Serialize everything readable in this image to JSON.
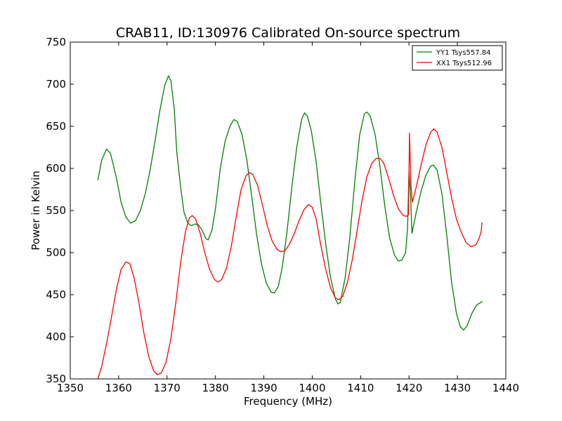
{
  "chart_data": {
    "type": "line",
    "title": "CRAB11, ID:130976 Calibrated On-source spectrum",
    "xlabel": "Frequency (MHz)",
    "ylabel": "Power in Kelvin",
    "xlim": [
      1350,
      1440
    ],
    "ylim": [
      350,
      750
    ],
    "xticks": [
      1350,
      1360,
      1370,
      1380,
      1390,
      1400,
      1410,
      1420,
      1430,
      1440
    ],
    "yticks": [
      350,
      400,
      450,
      500,
      550,
      600,
      650,
      700,
      750
    ],
    "grid": false,
    "legend_position": "top-right",
    "series": [
      {
        "name": "YY1 Tsys557.84",
        "color": "#008000",
        "points": [
          [
            1355.7,
            586
          ],
          [
            1356.5,
            610
          ],
          [
            1357.5,
            623
          ],
          [
            1358.3,
            618
          ],
          [
            1359.5,
            590
          ],
          [
            1360.5,
            560
          ],
          [
            1361.5,
            542
          ],
          [
            1362.5,
            535
          ],
          [
            1363.5,
            538
          ],
          [
            1364.5,
            550
          ],
          [
            1365.5,
            570
          ],
          [
            1366.5,
            598
          ],
          [
            1367.5,
            632
          ],
          [
            1368.5,
            668
          ],
          [
            1369.5,
            698
          ],
          [
            1370.3,
            710
          ],
          [
            1370.8,
            704
          ],
          [
            1371.5,
            670
          ],
          [
            1372.0,
            620
          ],
          [
            1372.8,
            578
          ],
          [
            1373.5,
            548
          ],
          [
            1374.3,
            535
          ],
          [
            1375.0,
            532
          ],
          [
            1375.8,
            534
          ],
          [
            1376.5,
            533
          ],
          [
            1377.3,
            526
          ],
          [
            1378.0,
            517
          ],
          [
            1378.5,
            515
          ],
          [
            1379.3,
            527
          ],
          [
            1380.0,
            552
          ],
          [
            1381.0,
            600
          ],
          [
            1382.0,
            632
          ],
          [
            1383.0,
            650
          ],
          [
            1383.8,
            658
          ],
          [
            1384.5,
            656
          ],
          [
            1385.5,
            640
          ],
          [
            1386.5,
            610
          ],
          [
            1387.5,
            567
          ],
          [
            1388.5,
            522
          ],
          [
            1389.5,
            487
          ],
          [
            1390.5,
            464
          ],
          [
            1391.5,
            453
          ],
          [
            1392.2,
            452
          ],
          [
            1393.0,
            460
          ],
          [
            1393.8,
            482
          ],
          [
            1394.8,
            525
          ],
          [
            1395.8,
            578
          ],
          [
            1396.8,
            625
          ],
          [
            1397.8,
            658
          ],
          [
            1398.4,
            666
          ],
          [
            1399.0,
            662
          ],
          [
            1399.8,
            645
          ],
          [
            1400.8,
            608
          ],
          [
            1401.8,
            558
          ],
          [
            1402.8,
            510
          ],
          [
            1403.8,
            470
          ],
          [
            1404.8,
            445
          ],
          [
            1405.3,
            439
          ],
          [
            1405.8,
            441
          ],
          [
            1406.8,
            470
          ],
          [
            1407.8,
            520
          ],
          [
            1408.8,
            585
          ],
          [
            1409.8,
            640
          ],
          [
            1410.8,
            665
          ],
          [
            1411.3,
            667
          ],
          [
            1412.0,
            662
          ],
          [
            1413.0,
            640
          ],
          [
            1414.0,
            602
          ],
          [
            1415.0,
            555
          ],
          [
            1416.0,
            517
          ],
          [
            1417.0,
            497
          ],
          [
            1417.8,
            490
          ],
          [
            1418.5,
            491
          ],
          [
            1419.3,
            500
          ],
          [
            1419.7,
            530
          ],
          [
            1420.0,
            597
          ],
          [
            1420.3,
            570
          ],
          [
            1420.6,
            523
          ],
          [
            1421.5,
            548
          ],
          [
            1422.5,
            573
          ],
          [
            1423.5,
            592
          ],
          [
            1424.5,
            603
          ],
          [
            1425.0,
            604
          ],
          [
            1425.8,
            598
          ],
          [
            1426.8,
            570
          ],
          [
            1427.8,
            520
          ],
          [
            1428.8,
            465
          ],
          [
            1429.8,
            428
          ],
          [
            1430.6,
            412
          ],
          [
            1431.3,
            408
          ],
          [
            1432.0,
            413
          ],
          [
            1433.0,
            428
          ],
          [
            1434.0,
            438
          ],
          [
            1435.2,
            442
          ]
        ]
      },
      {
        "name": "XX1 Tsys512.96",
        "color": "#ff0000",
        "points": [
          [
            1355.7,
            350
          ],
          [
            1356.5,
            365
          ],
          [
            1357.5,
            392
          ],
          [
            1358.5,
            423
          ],
          [
            1359.5,
            455
          ],
          [
            1360.5,
            480
          ],
          [
            1361.5,
            489
          ],
          [
            1362.3,
            487
          ],
          [
            1363.2,
            470
          ],
          [
            1364.2,
            440
          ],
          [
            1365.2,
            405
          ],
          [
            1366.2,
            377
          ],
          [
            1367.2,
            360
          ],
          [
            1368.0,
            355
          ],
          [
            1368.8,
            357
          ],
          [
            1369.8,
            370
          ],
          [
            1370.8,
            398
          ],
          [
            1371.8,
            440
          ],
          [
            1372.8,
            488
          ],
          [
            1373.8,
            525
          ],
          [
            1374.6,
            541
          ],
          [
            1375.2,
            544
          ],
          [
            1375.9,
            540
          ],
          [
            1376.8,
            524
          ],
          [
            1377.8,
            500
          ],
          [
            1378.8,
            480
          ],
          [
            1379.8,
            468
          ],
          [
            1380.5,
            465
          ],
          [
            1381.3,
            468
          ],
          [
            1382.3,
            482
          ],
          [
            1383.3,
            508
          ],
          [
            1384.3,
            543
          ],
          [
            1385.3,
            575
          ],
          [
            1386.3,
            591
          ],
          [
            1387.0,
            595
          ],
          [
            1387.7,
            593
          ],
          [
            1388.7,
            580
          ],
          [
            1389.7,
            557
          ],
          [
            1390.7,
            532
          ],
          [
            1391.7,
            514
          ],
          [
            1392.7,
            504
          ],
          [
            1393.5,
            501
          ],
          [
            1394.3,
            502
          ],
          [
            1395.3,
            510
          ],
          [
            1396.3,
            523
          ],
          [
            1397.3,
            538
          ],
          [
            1398.3,
            551
          ],
          [
            1399.2,
            557
          ],
          [
            1400.0,
            554
          ],
          [
            1400.8,
            540
          ],
          [
            1401.8,
            508
          ],
          [
            1402.8,
            480
          ],
          [
            1403.8,
            458
          ],
          [
            1404.8,
            446
          ],
          [
            1405.5,
            444
          ],
          [
            1406.3,
            448
          ],
          [
            1407.3,
            465
          ],
          [
            1408.3,
            492
          ],
          [
            1409.3,
            527
          ],
          [
            1410.3,
            562
          ],
          [
            1411.3,
            590
          ],
          [
            1412.3,
            606
          ],
          [
            1413.2,
            612
          ],
          [
            1414.0,
            612
          ],
          [
            1414.8,
            606
          ],
          [
            1415.8,
            588
          ],
          [
            1416.8,
            568
          ],
          [
            1417.8,
            552
          ],
          [
            1418.8,
            544
          ],
          [
            1419.5,
            543
          ],
          [
            1419.9,
            545
          ],
          [
            1420.1,
            642
          ],
          [
            1420.4,
            580
          ],
          [
            1420.7,
            560
          ],
          [
            1421.5,
            578
          ],
          [
            1422.5,
            604
          ],
          [
            1423.5,
            628
          ],
          [
            1424.5,
            643
          ],
          [
            1425.1,
            647
          ],
          [
            1425.8,
            643
          ],
          [
            1426.8,
            625
          ],
          [
            1427.8,
            595
          ],
          [
            1428.8,
            565
          ],
          [
            1429.8,
            540
          ],
          [
            1430.8,
            524
          ],
          [
            1431.8,
            512
          ],
          [
            1432.8,
            507
          ],
          [
            1433.8,
            509
          ],
          [
            1434.5,
            517
          ],
          [
            1434.9,
            525
          ],
          [
            1435.1,
            536
          ]
        ]
      }
    ]
  }
}
